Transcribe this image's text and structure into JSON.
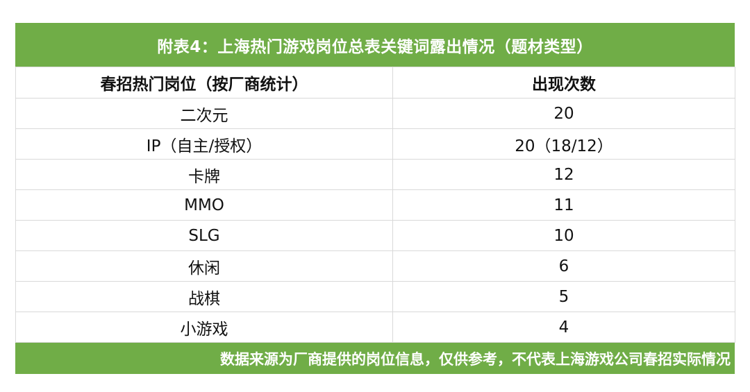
{
  "title": "附表4：上海热门游戏岗位总表关键词露出情况（题材类型）",
  "columns": [
    "春招热门岗位（按厂商统计）",
    "出现次数"
  ],
  "rows": [
    {
      "keyword": "二次元",
      "count": "20"
    },
    {
      "keyword": "IP（自主/授权）",
      "count": "20（18/12）"
    },
    {
      "keyword": "卡牌",
      "count": "12"
    },
    {
      "keyword": "MMO",
      "count": "11"
    },
    {
      "keyword": "SLG",
      "count": "10"
    },
    {
      "keyword": "休闲",
      "count": "6"
    },
    {
      "keyword": "战棋",
      "count": "5"
    },
    {
      "keyword": "小游戏",
      "count": "4"
    }
  ],
  "footer": "数据来源为厂商提供的岗位信息，仅供参考，不代表上海游戏公司春招实际情况",
  "colors": {
    "accent_green": "#70ad47",
    "border": "#d9d9d9"
  }
}
